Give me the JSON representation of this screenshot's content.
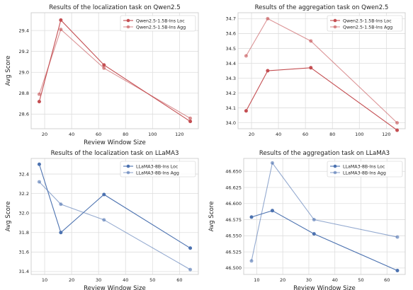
{
  "chart_data": [
    {
      "type": "line",
      "title": "Results of the localization task on Qwen2.5",
      "xlabel": "Review Window Size",
      "ylabel": "Avg Score",
      "x": [
        16,
        32,
        64,
        128
      ],
      "xlim": [
        10,
        134
      ],
      "ylim": [
        28.46,
        29.57
      ],
      "xticks": [
        20,
        40,
        60,
        80,
        100,
        120
      ],
      "yticks": [
        28.6,
        28.8,
        29.0,
        29.2,
        29.4
      ],
      "tick_decimals": 1,
      "grid": true,
      "legend_position": "top-right",
      "series": [
        {
          "name": "Qwen2.5-1.5B-Ins Loc",
          "values": [
            28.72,
            29.5,
            29.07,
            28.53
          ],
          "color": "#c44e52",
          "alpha": 1.0
        },
        {
          "name": "Qwen2.5-1.5B-Ins Agg",
          "values": [
            28.79,
            29.41,
            29.04,
            28.56
          ],
          "color": "#c44e52",
          "alpha": 0.6
        }
      ]
    },
    {
      "type": "line",
      "title": "Results of the aggregation task on Qwen2.5",
      "xlabel": "",
      "ylabel": "",
      "x": [
        16,
        32,
        64,
        128
      ],
      "xlim": [
        10,
        134
      ],
      "ylim": [
        33.96,
        34.74
      ],
      "xticks": [
        20,
        40,
        60,
        80,
        100,
        120
      ],
      "yticks": [
        34.0,
        34.1,
        34.2,
        34.3,
        34.4,
        34.5,
        34.6,
        34.7
      ],
      "tick_decimals": 1,
      "grid": true,
      "legend_position": "top-right",
      "series": [
        {
          "name": "Qwen2.5-1.5B-Ins Loc",
          "values": [
            34.08,
            34.35,
            34.37,
            33.95
          ],
          "color": "#c44e52",
          "alpha": 1.0
        },
        {
          "name": "Qwen2.5-1.5B-Ins Agg",
          "values": [
            34.45,
            34.7,
            34.55,
            34.0
          ],
          "color": "#c44e52",
          "alpha": 0.6
        }
      ]
    },
    {
      "type": "line",
      "title": "Results of the localization task on LLaMA3",
      "xlabel": "Review Window Size",
      "ylabel": "Avg Score",
      "x": [
        8,
        16,
        32,
        64
      ],
      "xlim": [
        5,
        67
      ],
      "ylim": [
        31.37,
        32.56
      ],
      "xticks": [
        10,
        20,
        30,
        40,
        50,
        60
      ],
      "yticks": [
        31.4,
        31.6,
        31.8,
        32.0,
        32.2,
        32.4
      ],
      "tick_decimals": 1,
      "grid": true,
      "legend_position": "top-right",
      "series": [
        {
          "name": "LLaMA3-8B-Ins Loc",
          "values": [
            32.5,
            31.8,
            32.19,
            31.64
          ],
          "color": "#4c72b0",
          "alpha": 1.0
        },
        {
          "name": "LLaMA3-8B-Ins Agg",
          "values": [
            32.32,
            32.09,
            31.93,
            31.42
          ],
          "color": "#4c72b0",
          "alpha": 0.6
        }
      ]
    },
    {
      "type": "line",
      "title": "Results of the aggregation task on LLaMA3",
      "xlabel": "Review Window Size",
      "ylabel": "Avg Score",
      "x": [
        8,
        16,
        32,
        64
      ],
      "xlim": [
        5,
        67
      ],
      "ylim": [
        46.49,
        46.67
      ],
      "xticks": [
        10,
        20,
        30,
        40,
        50,
        60
      ],
      "yticks": [
        46.5,
        46.525,
        46.55,
        46.575,
        46.6,
        46.625,
        46.65
      ],
      "tick_decimals": 3,
      "grid": true,
      "legend_position": "top-right",
      "series": [
        {
          "name": "LLaMA3-8B-Ins Loc",
          "values": [
            46.579,
            46.589,
            46.553,
            46.496
          ],
          "color": "#4c72b0",
          "alpha": 1.0
        },
        {
          "name": "LLaMA3-8B-Ins Agg",
          "values": [
            46.511,
            46.663,
            46.575,
            46.548
          ],
          "color": "#4c72b0",
          "alpha": 0.6
        }
      ]
    }
  ]
}
